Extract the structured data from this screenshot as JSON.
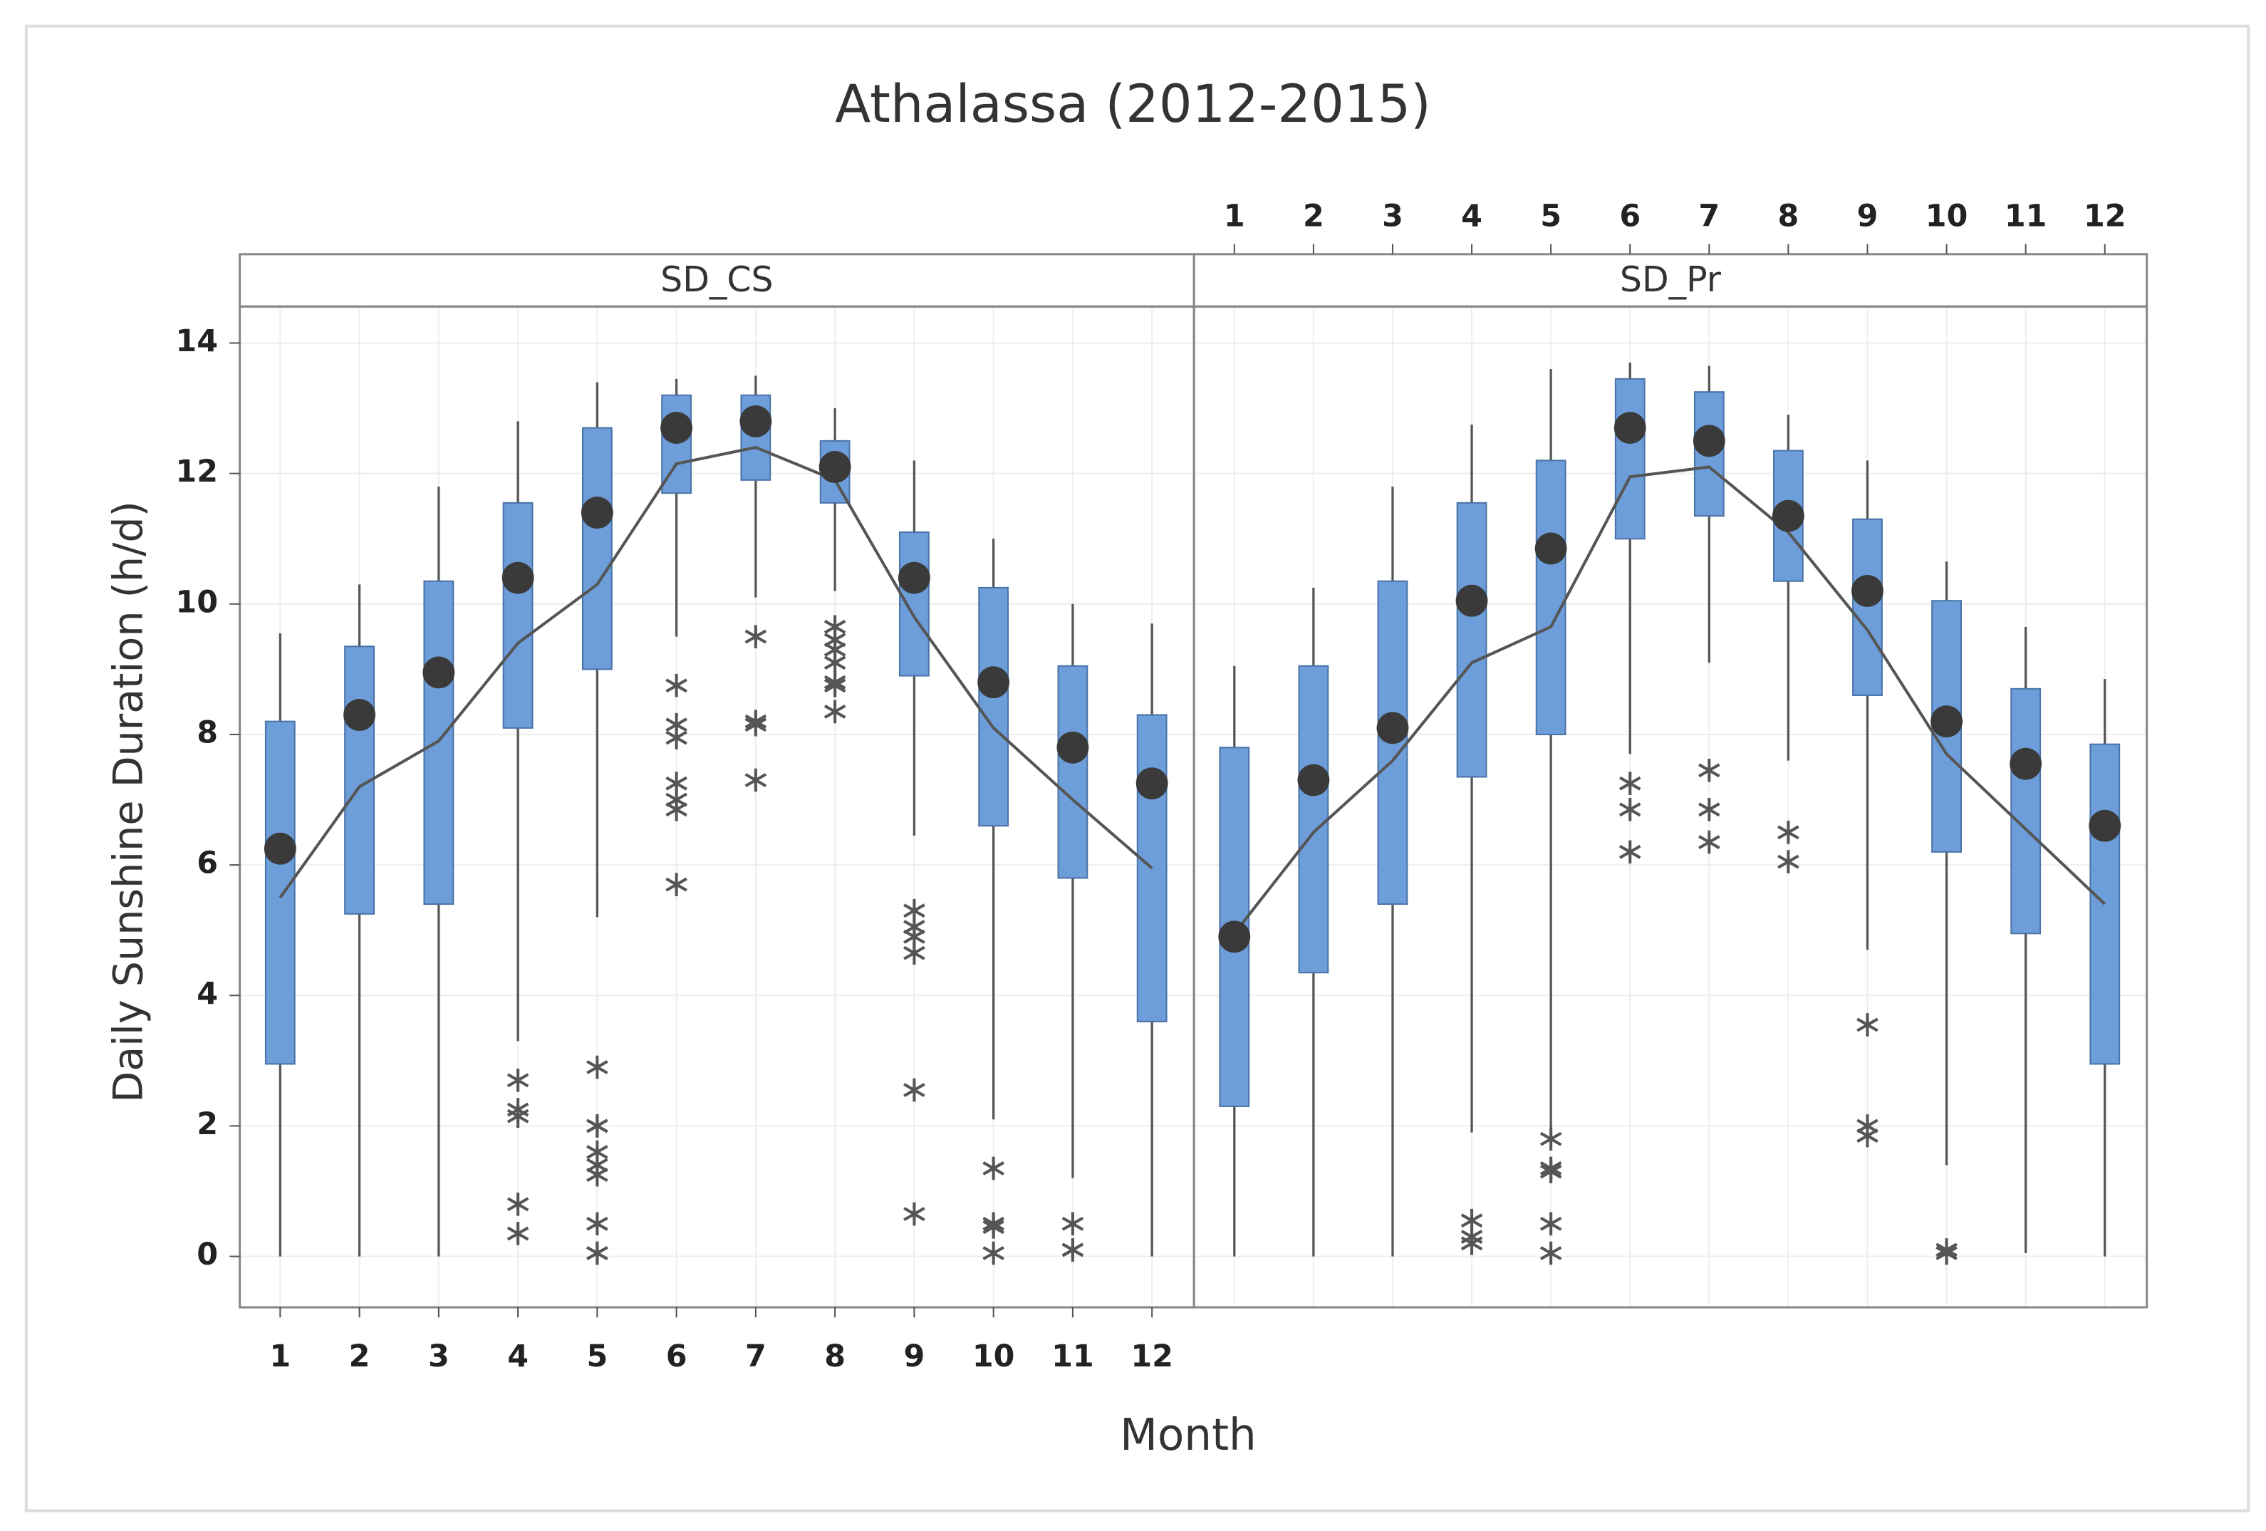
{
  "chart_data": {
    "type": "box",
    "title": "Athalassa (2012-2015)",
    "xlabel": "Month",
    "ylabel": "Daily Sunshine Duration (h/d)",
    "xlim": [
      0.49,
      12.53
    ],
    "xticks": [
      1,
      2,
      3,
      4,
      5,
      6,
      7,
      8,
      9,
      10,
      11,
      12
    ],
    "ylim": [
      -0.78,
      14.56
    ],
    "yticks": [
      0,
      2,
      4,
      6,
      8,
      10,
      12,
      14
    ],
    "grid": true,
    "color": "#6d9ed9",
    "panels": [
      {
        "name": "SD_CS",
        "whisker_low": [
          0,
          0,
          0,
          3.3,
          5.2,
          9.5,
          10.1,
          10.2,
          6.45,
          2.1,
          1.2,
          0
        ],
        "q1": [
          2.95,
          5.25,
          5.4,
          8.1,
          9.0,
          11.7,
          11.9,
          11.55,
          8.9,
          6.6,
          5.8,
          3.6
        ],
        "q3": [
          8.2,
          9.35,
          10.35,
          11.55,
          12.7,
          13.2,
          13.2,
          12.5,
          11.1,
          10.25,
          9.05,
          8.3
        ],
        "whisker_high": [
          9.55,
          10.3,
          11.8,
          12.8,
          13.4,
          13.45,
          13.5,
          13.0,
          12.2,
          11.0,
          10.0,
          9.7
        ],
        "mean": [
          6.25,
          8.3,
          8.95,
          10.4,
          11.4,
          12.7,
          12.8,
          12.1,
          10.4,
          8.8,
          7.8,
          7.25
        ],
        "median": [
          5.5,
          7.2,
          7.9,
          9.4,
          10.3,
          12.15,
          12.4,
          11.9,
          9.8,
          8.1,
          7.0,
          5.95
        ],
        "outliers": [
          [],
          [],
          [],
          [
            2.7,
            2.25,
            2.15,
            0.8,
            0.35
          ],
          [
            2.9,
            2.0,
            2.0,
            1.6,
            1.4,
            1.25,
            0.5,
            0.05,
            0.05
          ],
          [
            8.75,
            8.15,
            7.95,
            7.25,
            7.0,
            6.85,
            5.7
          ],
          [
            9.5,
            8.2,
            8.15,
            7.3
          ],
          [
            9.65,
            9.45,
            9.3,
            9.1,
            8.8,
            8.75,
            8.35
          ],
          [
            5.3,
            5.05,
            4.9,
            4.65,
            2.55,
            0.65
          ],
          [
            1.35,
            0.5,
            0.45,
            0.05
          ],
          [
            0.5,
            0.1,
            0.1
          ],
          []
        ]
      },
      {
        "name": "SD_Pr",
        "whisker_low": [
          0,
          0,
          0,
          1.9,
          1.9,
          7.7,
          9.1,
          7.6,
          4.7,
          1.4,
          0.05,
          0
        ],
        "q1": [
          2.3,
          4.35,
          5.4,
          7.35,
          8.0,
          11.0,
          11.35,
          10.35,
          8.6,
          6.2,
          4.95,
          2.95
        ],
        "q3": [
          7.8,
          9.05,
          10.35,
          11.55,
          12.2,
          13.45,
          13.25,
          12.35,
          11.3,
          10.05,
          8.7,
          7.85
        ],
        "whisker_high": [
          9.05,
          10.25,
          11.8,
          12.75,
          13.6,
          13.7,
          13.65,
          12.9,
          12.2,
          10.65,
          9.65,
          8.85
        ],
        "mean": [
          4.9,
          7.3,
          8.1,
          10.05,
          10.85,
          12.7,
          12.5,
          11.35,
          10.2,
          8.2,
          7.55,
          6.6
        ],
        "median": [
          4.95,
          6.5,
          7.6,
          9.1,
          9.65,
          11.95,
          12.1,
          11.1,
          9.6,
          7.7,
          6.55,
          5.4
        ],
        "outliers": [
          [],
          [],
          [],
          [
            0.55,
            0.3,
            0.2
          ],
          [
            1.8,
            1.35,
            1.3,
            0.5,
            0.05
          ],
          [
            7.25,
            6.85,
            6.2
          ],
          [
            7.45,
            6.85,
            6.35
          ],
          [
            6.5,
            6.05
          ],
          [
            3.55,
            2.0,
            1.85
          ],
          [
            0.1,
            0.05
          ],
          [],
          []
        ]
      }
    ]
  }
}
